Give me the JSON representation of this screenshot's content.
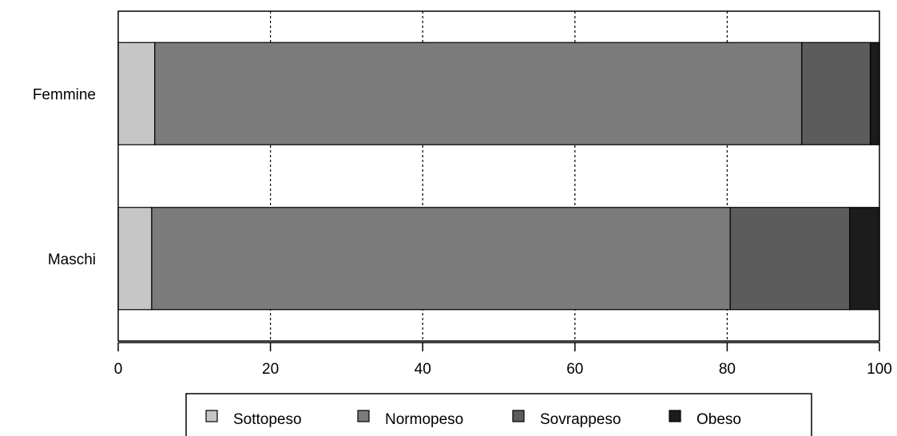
{
  "chart_data": {
    "type": "bar",
    "orientation": "horizontal",
    "stacked": true,
    "title": "",
    "xlabel": "",
    "ylabel": "",
    "xlim": [
      0,
      100
    ],
    "x_ticks": [
      0,
      20,
      40,
      60,
      80,
      100
    ],
    "x_tick_labels": [
      "0",
      "20",
      "40",
      "60",
      "80",
      "100"
    ],
    "grid": "vertical dotted at 20, 40, 60, 80",
    "categories": [
      "Femmine",
      "Maschi"
    ],
    "series": [
      {
        "name": "Sottopeso",
        "color": "#c6c6c6",
        "values": [
          4.8,
          4.4
        ]
      },
      {
        "name": "Normopeso",
        "color": "#7b7b7b",
        "values": [
          85.0,
          76.0
        ]
      },
      {
        "name": "Sovrappeso",
        "color": "#5c5c5c",
        "values": [
          9.0,
          15.7
        ]
      },
      {
        "name": "Obeso",
        "color": "#1c1c1c",
        "values": [
          1.2,
          3.9
        ]
      }
    ],
    "legend_placement": "bottom"
  }
}
